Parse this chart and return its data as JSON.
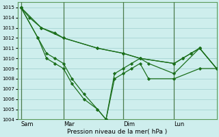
{
  "xlabel": "Pression niveau de la mer( hPa )",
  "background_color": "#ceeeed",
  "grid_color": "#aad8d6",
  "line_color": "#1a6e1a",
  "vline_color": "#4a7a4a",
  "ylim": [
    1004,
    1015.5
  ],
  "yticks": [
    1004,
    1005,
    1006,
    1007,
    1008,
    1009,
    1010,
    1011,
    1012,
    1013,
    1014,
    1015
  ],
  "xtick_labels": [
    "Sam",
    "Mar",
    "Dim",
    "Lun"
  ],
  "vline_positions": [
    0.0,
    2.5,
    6.0,
    9.0
  ],
  "xlim": [
    -0.2,
    11.5
  ],
  "series_x": [
    [
      0,
      0.5,
      1.2,
      2.5,
      4.5,
      6.0,
      7.0,
      9.0,
      9.5,
      10.0,
      10.5,
      11.5
    ],
    [
      0,
      1.2,
      2.0,
      2.5,
      4.5,
      6.0,
      7.0,
      9.0,
      9.5,
      10.0,
      10.5,
      11.5
    ],
    [
      0,
      1.0,
      1.5,
      2.0,
      2.5,
      3.0,
      3.7,
      4.5,
      5.0,
      5.5,
      6.0,
      6.5,
      7.0,
      7.5,
      9.0,
      10.5,
      11.5
    ],
    [
      0,
      1.0,
      1.5,
      2.0,
      2.5,
      3.0,
      3.7,
      4.5,
      5.0,
      5.5,
      6.0,
      6.5,
      7.0,
      7.5,
      9.0,
      10.5,
      11.5
    ]
  ],
  "series_y": [
    [
      1015,
      1014,
      1013,
      1012,
      1011,
      1010.5,
      1010,
      1009.5,
      1010,
      1010.5,
      1011,
      1009
    ],
    [
      1015,
      1013,
      1012.5,
      1012,
      1011,
      1010.5,
      1010,
      1009.5,
      1010,
      1010.5,
      1011,
      1009
    ],
    [
      1015,
      1012,
      1010.5,
      1010,
      1009.5,
      1008,
      1006.5,
      1005,
      1004,
      1008,
      1008.5,
      1009,
      1009.5,
      1008,
      1008,
      1009,
      1009
    ],
    [
      1015,
      1012,
      1010,
      1009.5,
      1009,
      1007.5,
      1006,
      1005,
      1004,
      1008.5,
      1009,
      1009.5,
      1010,
      1009.5,
      1008.5,
      1011,
      1009
    ]
  ]
}
